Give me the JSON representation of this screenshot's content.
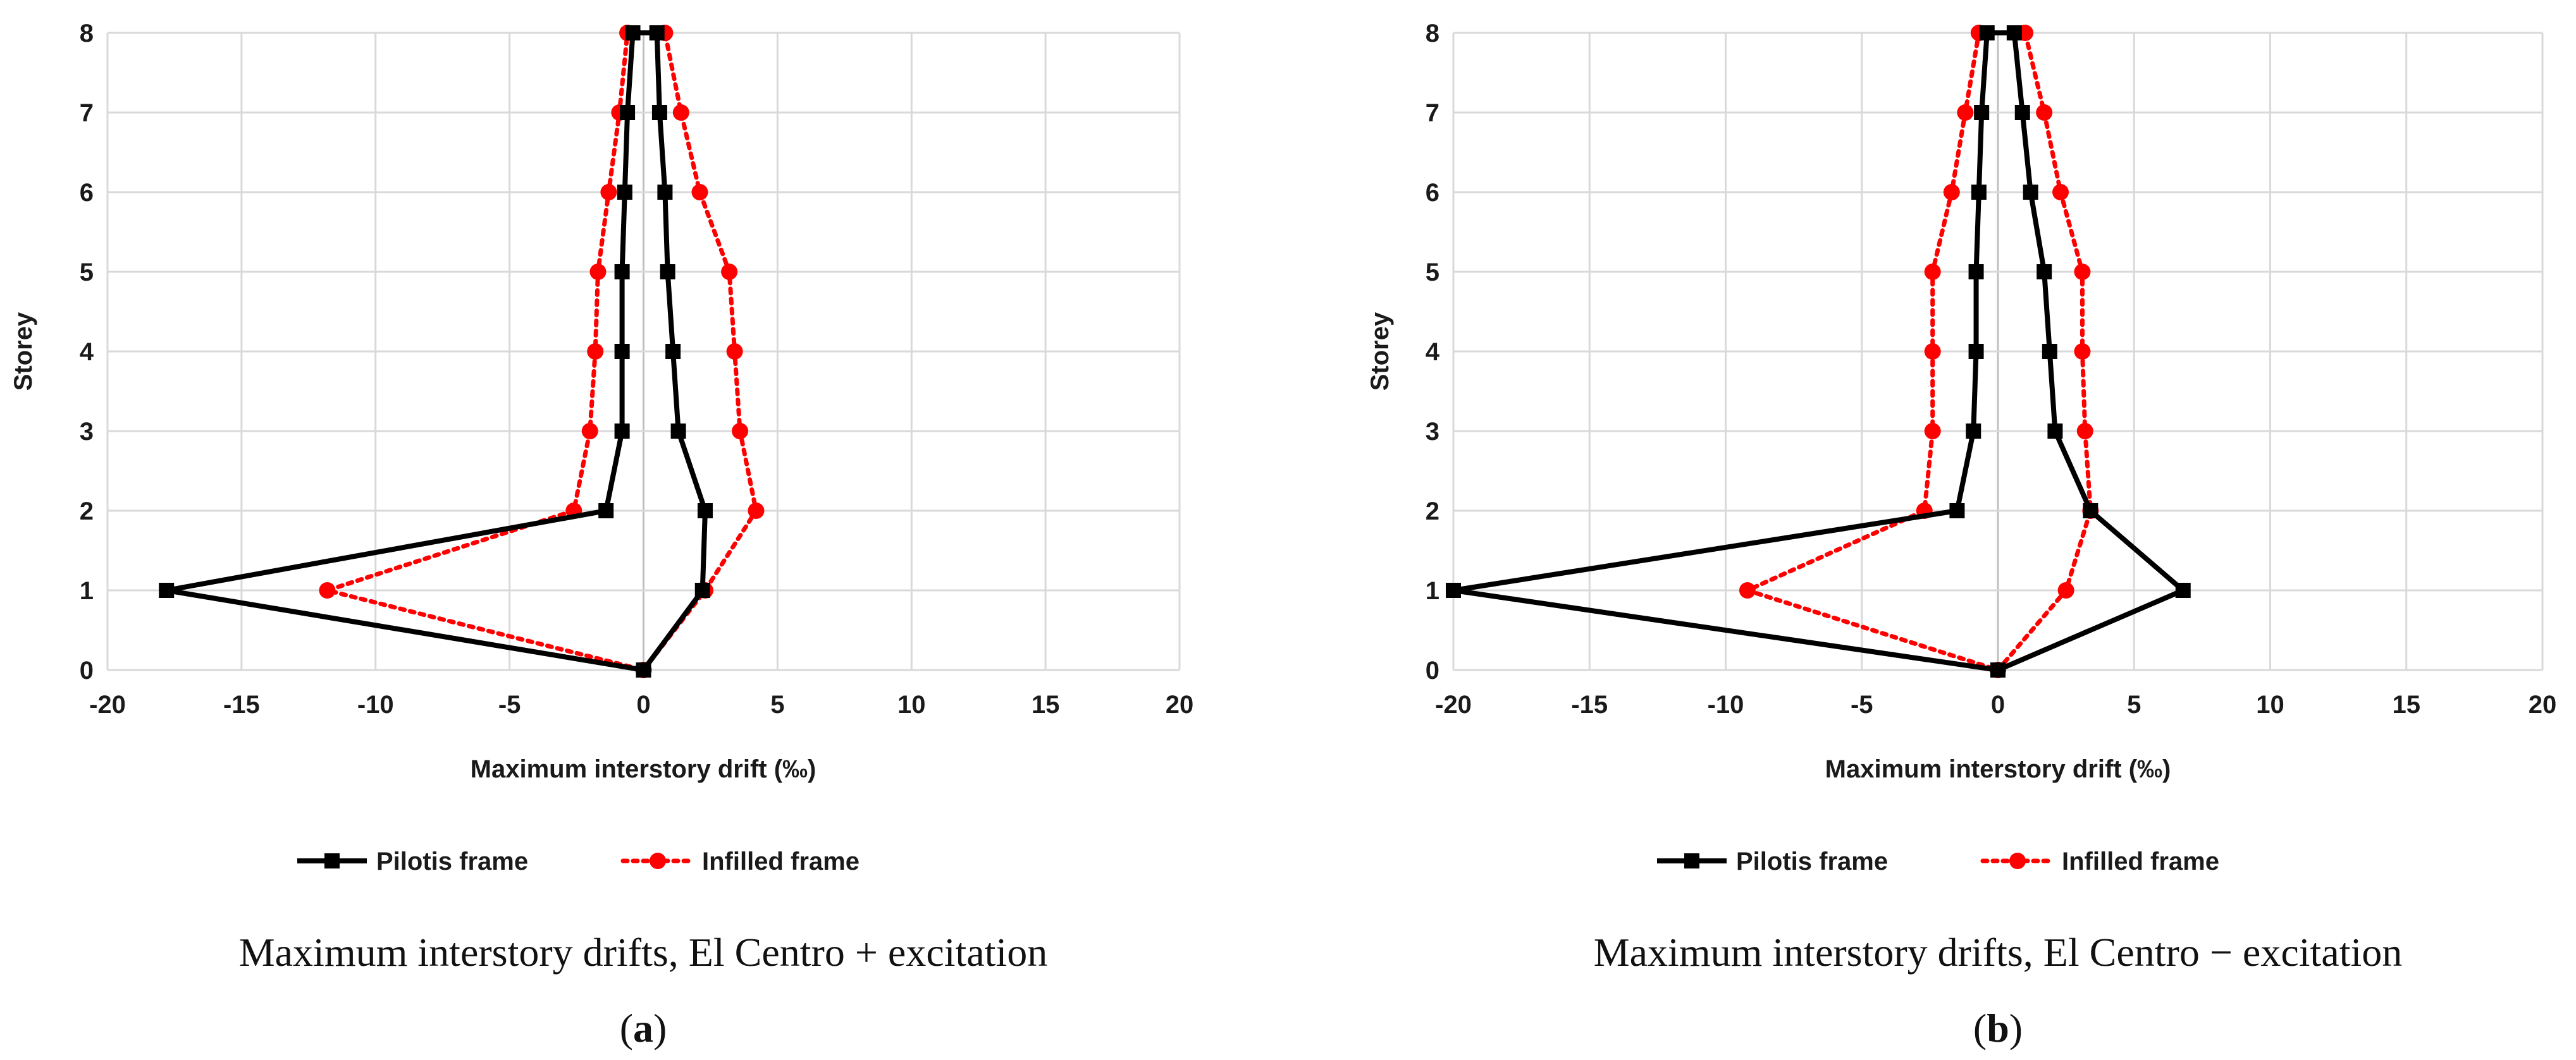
{
  "colors": {
    "pilotis": "#000000",
    "infilled": "#ff0000",
    "grid": "#d9d9d9"
  },
  "chart_data": [
    {
      "type": "line",
      "xlabel": "Maximum interstory drift (‰)",
      "ylabel": "Storey",
      "xlim": [
        -20,
        20
      ],
      "ylim": [
        0,
        8
      ],
      "xticks": [
        -20,
        -15,
        -10,
        -5,
        0,
        5,
        10,
        15,
        20
      ],
      "yticks": [
        0,
        1,
        2,
        3,
        4,
        5,
        6,
        7,
        8
      ],
      "grid": true,
      "legend_position": "bottom",
      "series": [
        {
          "name": "Pilotis frame",
          "style": "solid",
          "marker": "square",
          "points": [
            [
              0.0,
              0
            ],
            [
              2.2,
              1
            ],
            [
              2.3,
              2
            ],
            [
              1.3,
              3
            ],
            [
              1.1,
              4
            ],
            [
              0.9,
              5
            ],
            [
              0.8,
              6
            ],
            [
              0.6,
              7
            ],
            [
              0.5,
              8
            ],
            [
              -0.4,
              8
            ],
            [
              -0.6,
              7
            ],
            [
              -0.7,
              6
            ],
            [
              -0.8,
              5
            ],
            [
              -0.8,
              4
            ],
            [
              -0.8,
              3
            ],
            [
              -1.4,
              2
            ],
            [
              -17.8,
              1
            ],
            [
              0.0,
              0
            ]
          ]
        },
        {
          "name": "Infilled frame",
          "style": "dotted",
          "marker": "circle",
          "points": [
            [
              0.0,
              0
            ],
            [
              2.3,
              1
            ],
            [
              4.2,
              2
            ],
            [
              3.6,
              3
            ],
            [
              3.4,
              4
            ],
            [
              3.2,
              5
            ],
            [
              2.1,
              6
            ],
            [
              1.4,
              7
            ],
            [
              0.8,
              8
            ],
            [
              -0.6,
              8
            ],
            [
              -0.9,
              7
            ],
            [
              -1.3,
              6
            ],
            [
              -1.7,
              5
            ],
            [
              -1.8,
              4
            ],
            [
              -2.0,
              3
            ],
            [
              -2.6,
              2
            ],
            [
              -11.8,
              1
            ],
            [
              0.0,
              0
            ]
          ]
        }
      ],
      "caption": "Maximum interstory drifts, El Centro + excitation",
      "label": "a"
    },
    {
      "type": "line",
      "xlabel": "Maximum interstory drift (‰)",
      "ylabel": "Storey",
      "xlim": [
        -20,
        20
      ],
      "ylim": [
        0,
        8
      ],
      "xticks": [
        -20,
        -15,
        -10,
        -5,
        0,
        5,
        10,
        15,
        20
      ],
      "yticks": [
        0,
        1,
        2,
        3,
        4,
        5,
        6,
        7,
        8
      ],
      "grid": true,
      "legend_position": "bottom",
      "series": [
        {
          "name": "Pilotis frame",
          "style": "solid",
          "marker": "square",
          "points": [
            [
              0.0,
              0
            ],
            [
              6.8,
              1
            ],
            [
              3.4,
              2
            ],
            [
              2.1,
              3
            ],
            [
              1.9,
              4
            ],
            [
              1.7,
              5
            ],
            [
              1.2,
              6
            ],
            [
              0.9,
              7
            ],
            [
              0.6,
              8
            ],
            [
              -0.4,
              8
            ],
            [
              -0.6,
              7
            ],
            [
              -0.7,
              6
            ],
            [
              -0.8,
              5
            ],
            [
              -0.8,
              4
            ],
            [
              -0.9,
              3
            ],
            [
              -1.5,
              2
            ],
            [
              -20.0,
              1
            ],
            [
              0.0,
              0
            ]
          ]
        },
        {
          "name": "Infilled frame",
          "style": "dotted",
          "marker": "circle",
          "points": [
            [
              0.0,
              0
            ],
            [
              2.5,
              1
            ],
            [
              3.4,
              2
            ],
            [
              3.2,
              3
            ],
            [
              3.1,
              4
            ],
            [
              3.1,
              5
            ],
            [
              2.3,
              6
            ],
            [
              1.7,
              7
            ],
            [
              1.0,
              8
            ],
            [
              -0.7,
              8
            ],
            [
              -1.2,
              7
            ],
            [
              -1.7,
              6
            ],
            [
              -2.4,
              5
            ],
            [
              -2.4,
              4
            ],
            [
              -2.4,
              3
            ],
            [
              -2.7,
              2
            ],
            [
              -9.2,
              1
            ],
            [
              0.0,
              0
            ]
          ]
        }
      ],
      "caption": "Maximum interstory drifts, El Centro − excitation",
      "label": "b"
    }
  ]
}
